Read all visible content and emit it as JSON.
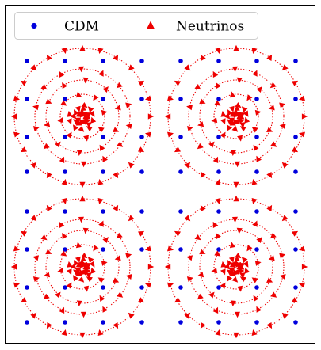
{
  "legend": {
    "cdm_label": "CDM",
    "neutrino_label": "Neutrinos"
  },
  "colors": {
    "cdm": "#0000dd",
    "neutrino": "#ee0000",
    "frame": "#000000",
    "background": "#ffffff"
  },
  "panels": [
    {
      "id": "top-left"
    },
    {
      "id": "top-right"
    },
    {
      "id": "bottom-left"
    },
    {
      "id": "bottom-right"
    }
  ],
  "cdm_grid": {
    "columns": 4,
    "rows": 4
  },
  "neutrino_halo": {
    "ring_count": 4,
    "ring_markers": [
      24,
      14,
      10,
      8
    ],
    "inner_cluster_markers": 28
  }
}
